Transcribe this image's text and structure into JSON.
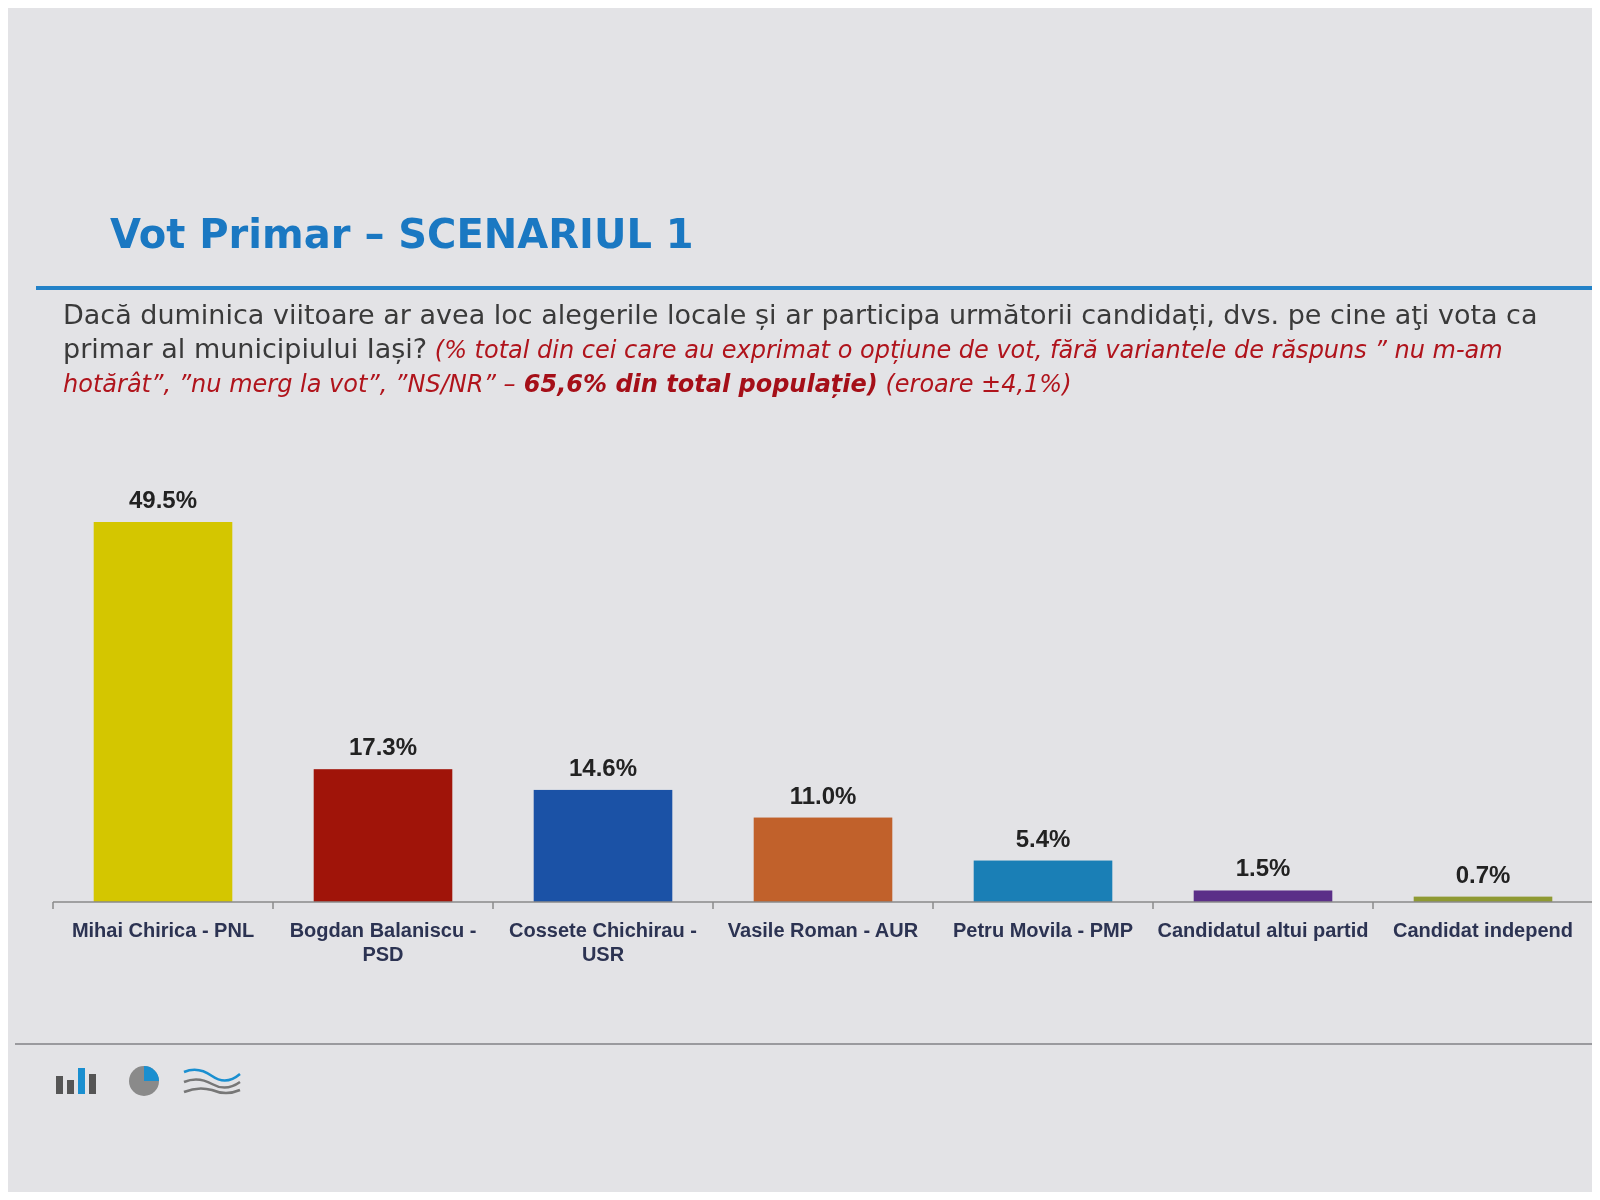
{
  "chart_data": {
    "type": "bar",
    "title": "Vot Primar – SCENARIUL 1",
    "subtitle": "Dacă duminica viitoare ar avea loc alegerile locale și ar participa următorii candidați, dvs. pe cine aţi vota ca primar al municipiului Iași?",
    "annotations": [
      "(% total din cei care au exprimat o opțiune de vot, fără variantele de răspuns ” nu m-am hotărât”, ”nu merg la vot”, ”NS/NR” –",
      "65,6% din total populație)",
      "(eroare ±4,1%)"
    ],
    "categories": [
      "Mihai Chirica - PNL",
      "Bogdan Balaniscu - PSD",
      "Cossete Chichirau - USR",
      "Vasile Roman - AUR",
      "Petru Movila - PMP",
      "Candidatul altui partid",
      "Candidat independ"
    ],
    "values": [
      49.5,
      17.3,
      14.6,
      11.0,
      5.4,
      1.5,
      0.7
    ],
    "value_labels": [
      "49.5%",
      "17.3%",
      "14.6%",
      "11.0%",
      "5.4%",
      "1.5%",
      "0.7%"
    ],
    "colors": [
      "#d4c600",
      "#a01409",
      "#1b52a6",
      "#c1612b",
      "#1a7fb6",
      "#5b2f88",
      "#8f9a33"
    ]
  }
}
